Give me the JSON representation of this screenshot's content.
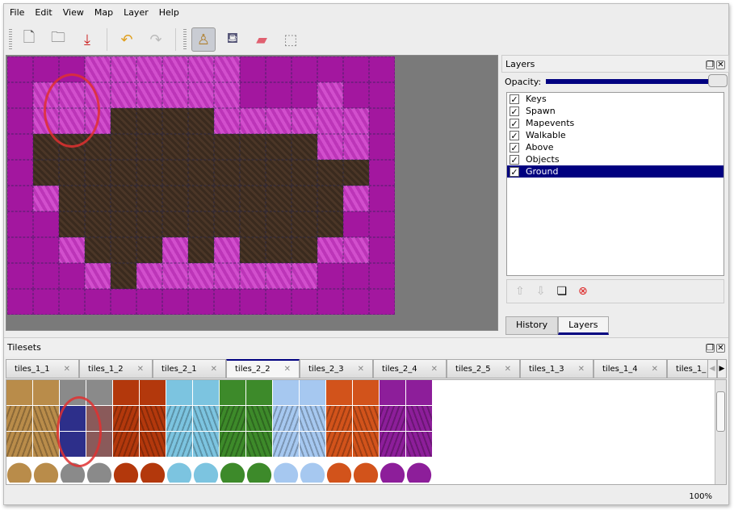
{
  "menu": [
    "File",
    "Edit",
    "View",
    "Map",
    "Layer",
    "Help"
  ],
  "toolbar": [
    {
      "name": "new-icon",
      "glyph": "🗋"
    },
    {
      "name": "open-icon",
      "glyph": "🗀"
    },
    {
      "name": "save-icon",
      "glyph": "⤓"
    },
    {
      "name": "undo-icon",
      "glyph": "↶"
    },
    {
      "name": "redo-icon",
      "glyph": "↷"
    },
    {
      "name": "stamp-brush-icon",
      "glyph": "♙"
    },
    {
      "name": "bucket-fill-icon",
      "glyph": "⛾"
    },
    {
      "name": "eraser-icon",
      "glyph": "▰"
    },
    {
      "name": "rect-select-icon",
      "glyph": "⬚"
    }
  ],
  "map": {
    "rows": [
      "MMMLLLLLLMMMMMM",
      "MLLLLLLLLMMMLMM",
      "MLLLDDDDLLLLLLM",
      "MDDDDDDDDDDDLLM",
      "MDDDDDDDDDDDDDM",
      "MLDDDDDDDDDDDLM",
      "MMDDDDDDDDDDDMM",
      "MMLDDDLDLDDDLLM",
      "MMMLDLLLLLLLMMM",
      "MMMMMMMMMMMMMMM"
    ]
  },
  "layers_panel": {
    "title": "Layers",
    "opacity_label": "Opacity:",
    "opacity": 1.0,
    "layers": [
      {
        "name": "Keys",
        "visible": true
      },
      {
        "name": "Spawn",
        "visible": true
      },
      {
        "name": "Mapevents",
        "visible": true
      },
      {
        "name": "Walkable",
        "visible": true
      },
      {
        "name": "Above",
        "visible": true
      },
      {
        "name": "Objects",
        "visible": true
      },
      {
        "name": "Ground",
        "visible": true,
        "selected": true
      }
    ],
    "tabs": [
      "History",
      "Layers"
    ],
    "active_tab": "Layers"
  },
  "tilesets": {
    "title": "Tilesets",
    "tabs": [
      "tiles_1_1",
      "tiles_1_2",
      "tiles_2_1",
      "tiles_2_2",
      "tiles_2_3",
      "tiles_2_4",
      "tiles_2_5",
      "tiles_1_3",
      "tiles_1_4",
      "tiles_1_"
    ],
    "active_tab": "tiles_2_2",
    "colors": [
      "#b98c4a",
      "#8a8a8a",
      "#b3380c",
      "#7cc4e0",
      "#3d8a2a",
      "#a6c8f0",
      "#d2531b",
      "#8d1e9a"
    ]
  },
  "status": {
    "zoom": "100%"
  }
}
